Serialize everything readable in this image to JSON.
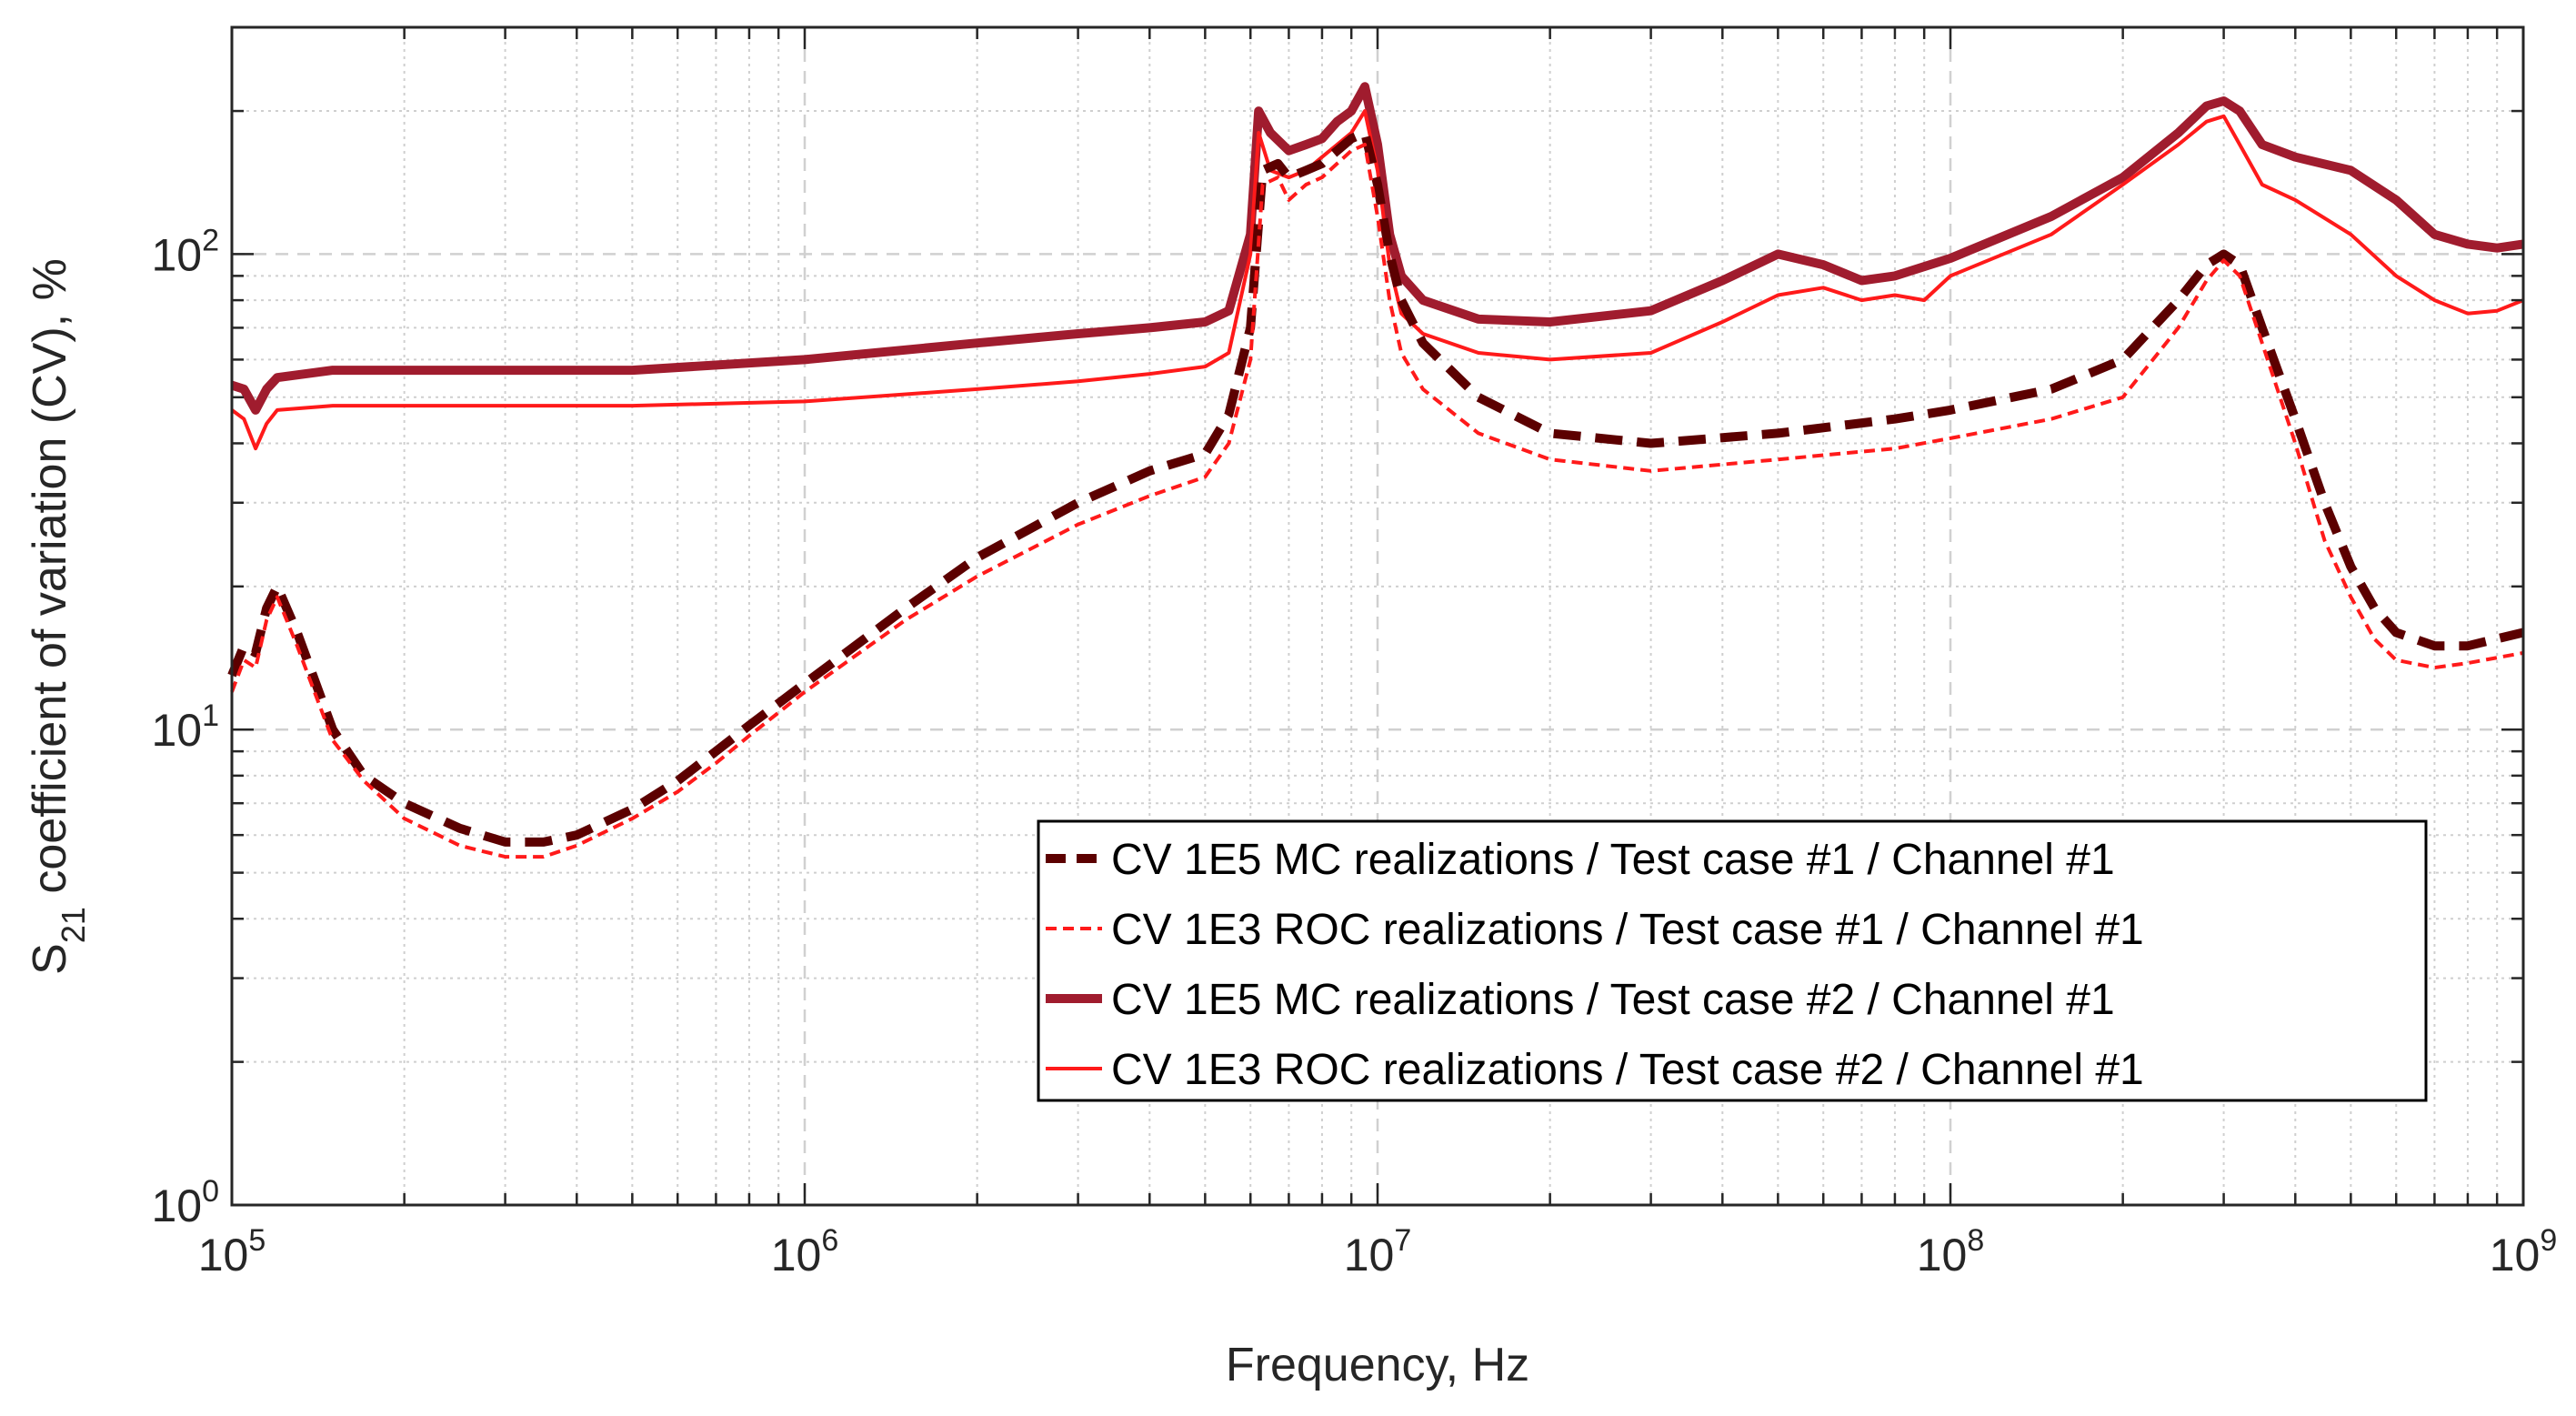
{
  "chart_data": {
    "type": "line",
    "xscale": "log",
    "yscale": "log",
    "xlim": [
      100000,
      1000000000
    ],
    "ylim": [
      1,
      300
    ],
    "xlabel": "Frequency, Hz",
    "ylabel": {
      "prefix": "S",
      "subscript": "21",
      "suffix": " coefficient of variation (CV), %"
    },
    "grid": true,
    "legend_location": "lower-right",
    "x_ticks": [
      {
        "value": 100000,
        "base": "10",
        "exp": "5"
      },
      {
        "value": 1000000,
        "base": "10",
        "exp": "6"
      },
      {
        "value": 10000000,
        "base": "10",
        "exp": "7"
      },
      {
        "value": 100000000,
        "base": "10",
        "exp": "8"
      },
      {
        "value": 1000000000,
        "base": "10",
        "exp": "9"
      }
    ],
    "y_ticks": [
      {
        "value": 1,
        "base": "10",
        "exp": "0"
      },
      {
        "value": 10,
        "base": "10",
        "exp": "1"
      },
      {
        "value": 100,
        "base": "10",
        "exp": "2"
      }
    ],
    "series": [
      {
        "name": "CV 1E5 MC realizations / Test case #1 / Channel #1",
        "color": "#5c0000",
        "style": "dashed-thick",
        "points": [
          [
            100000,
            13
          ],
          [
            105000,
            15
          ],
          [
            110000,
            14.5
          ],
          [
            115000,
            18
          ],
          [
            120000,
            20
          ],
          [
            130000,
            16
          ],
          [
            150000,
            10
          ],
          [
            170000,
            8
          ],
          [
            200000,
            7
          ],
          [
            250000,
            6.2
          ],
          [
            300000,
            5.8
          ],
          [
            350000,
            5.8
          ],
          [
            400000,
            6
          ],
          [
            500000,
            6.8
          ],
          [
            600000,
            7.8
          ],
          [
            700000,
            9
          ],
          [
            800000,
            10.2
          ],
          [
            1000000,
            12.5
          ],
          [
            1500000,
            18
          ],
          [
            2000000,
            23
          ],
          [
            3000000,
            30
          ],
          [
            4000000,
            35
          ],
          [
            5000000,
            38
          ],
          [
            5500000,
            46
          ],
          [
            6000000,
            70
          ],
          [
            6300000,
            150
          ],
          [
            6700000,
            155
          ],
          [
            7000000,
            145
          ],
          [
            7500000,
            150
          ],
          [
            8000000,
            155
          ],
          [
            8500000,
            165
          ],
          [
            9000000,
            175
          ],
          [
            9500000,
            180
          ],
          [
            10000000,
            140
          ],
          [
            10500000,
            100
          ],
          [
            11000000,
            80
          ],
          [
            12000000,
            65
          ],
          [
            15000000,
            50
          ],
          [
            20000000,
            42
          ],
          [
            30000000,
            40
          ],
          [
            50000000,
            42
          ],
          [
            80000000,
            45
          ],
          [
            100000000,
            47
          ],
          [
            150000000,
            52
          ],
          [
            200000000,
            60
          ],
          [
            250000000,
            80
          ],
          [
            280000000,
            95
          ],
          [
            300000000,
            100
          ],
          [
            320000000,
            95
          ],
          [
            350000000,
            70
          ],
          [
            400000000,
            45
          ],
          [
            450000000,
            30
          ],
          [
            500000000,
            22
          ],
          [
            550000000,
            18
          ],
          [
            600000000,
            16
          ],
          [
            700000000,
            15
          ],
          [
            800000000,
            15
          ],
          [
            1000000000,
            16
          ]
        ]
      },
      {
        "name": "CV 1E3 ROC realizations / Test case #1 / Channel #1",
        "color": "#ff1a1a",
        "style": "dashed-thin",
        "points": [
          [
            100000,
            12
          ],
          [
            105000,
            14
          ],
          [
            110000,
            13.5
          ],
          [
            115000,
            17
          ],
          [
            120000,
            19
          ],
          [
            130000,
            15
          ],
          [
            150000,
            9.5
          ],
          [
            170000,
            7.8
          ],
          [
            200000,
            6.5
          ],
          [
            250000,
            5.7
          ],
          [
            300000,
            5.4
          ],
          [
            350000,
            5.4
          ],
          [
            400000,
            5.7
          ],
          [
            500000,
            6.5
          ],
          [
            600000,
            7.4
          ],
          [
            700000,
            8.5
          ],
          [
            800000,
            9.7
          ],
          [
            1000000,
            12
          ],
          [
            1500000,
            17
          ],
          [
            2000000,
            21
          ],
          [
            3000000,
            27
          ],
          [
            4000000,
            31
          ],
          [
            5000000,
            34
          ],
          [
            5500000,
            40
          ],
          [
            6000000,
            60
          ],
          [
            6300000,
            140
          ],
          [
            6700000,
            145
          ],
          [
            7000000,
            130
          ],
          [
            7500000,
            140
          ],
          [
            8000000,
            145
          ],
          [
            8500000,
            155
          ],
          [
            9000000,
            165
          ],
          [
            9500000,
            170
          ],
          [
            10000000,
            120
          ],
          [
            10500000,
            80
          ],
          [
            11000000,
            62
          ],
          [
            12000000,
            52
          ],
          [
            15000000,
            42
          ],
          [
            20000000,
            37
          ],
          [
            30000000,
            35
          ],
          [
            50000000,
            37
          ],
          [
            80000000,
            39
          ],
          [
            100000000,
            41
          ],
          [
            150000000,
            45
          ],
          [
            200000000,
            50
          ],
          [
            250000000,
            70
          ],
          [
            280000000,
            88
          ],
          [
            300000000,
            97
          ],
          [
            320000000,
            90
          ],
          [
            350000000,
            65
          ],
          [
            400000000,
            40
          ],
          [
            450000000,
            25
          ],
          [
            500000000,
            19
          ],
          [
            550000000,
            15.5
          ],
          [
            600000000,
            14
          ],
          [
            700000000,
            13.5
          ],
          [
            800000000,
            13.8
          ],
          [
            1000000000,
            14.5
          ]
        ]
      },
      {
        "name": "CV 1E5 MC realizations / Test case #2 / Channel #1",
        "color": "#a01c2e",
        "style": "solid-thick",
        "points": [
          [
            100000,
            53
          ],
          [
            105000,
            52
          ],
          [
            110000,
            47
          ],
          [
            115000,
            52
          ],
          [
            120000,
            55
          ],
          [
            150000,
            57
          ],
          [
            200000,
            57
          ],
          [
            300000,
            57
          ],
          [
            500000,
            57
          ],
          [
            1000000,
            60
          ],
          [
            2000000,
            65
          ],
          [
            3000000,
            68
          ],
          [
            4000000,
            70
          ],
          [
            5000000,
            72
          ],
          [
            5500000,
            76
          ],
          [
            6000000,
            110
          ],
          [
            6200000,
            200
          ],
          [
            6500000,
            180
          ],
          [
            7000000,
            165
          ],
          [
            7500000,
            170
          ],
          [
            8000000,
            175
          ],
          [
            8500000,
            190
          ],
          [
            9000000,
            200
          ],
          [
            9500000,
            225
          ],
          [
            10000000,
            170
          ],
          [
            10500000,
            110
          ],
          [
            11000000,
            90
          ],
          [
            12000000,
            80
          ],
          [
            15000000,
            73
          ],
          [
            20000000,
            72
          ],
          [
            30000000,
            76
          ],
          [
            40000000,
            88
          ],
          [
            50000000,
            100
          ],
          [
            60000000,
            95
          ],
          [
            70000000,
            88
          ],
          [
            80000000,
            90
          ],
          [
            100000000,
            98
          ],
          [
            150000000,
            120
          ],
          [
            200000000,
            145
          ],
          [
            250000000,
            180
          ],
          [
            280000000,
            205
          ],
          [
            300000000,
            210
          ],
          [
            320000000,
            200
          ],
          [
            350000000,
            170
          ],
          [
            400000000,
            160
          ],
          [
            500000000,
            150
          ],
          [
            600000000,
            130
          ],
          [
            700000000,
            110
          ],
          [
            800000000,
            105
          ],
          [
            900000000,
            103
          ],
          [
            1000000000,
            105
          ]
        ]
      },
      {
        "name": "CV 1E3 ROC realizations / Test case #2 / Channel #1",
        "color": "#ff1a1a",
        "style": "solid-thin",
        "points": [
          [
            100000,
            47
          ],
          [
            105000,
            45
          ],
          [
            110000,
            39
          ],
          [
            115000,
            44
          ],
          [
            120000,
            47
          ],
          [
            150000,
            48
          ],
          [
            200000,
            48
          ],
          [
            300000,
            48
          ],
          [
            500000,
            48
          ],
          [
            1000000,
            49
          ],
          [
            2000000,
            52
          ],
          [
            3000000,
            54
          ],
          [
            4000000,
            56
          ],
          [
            5000000,
            58
          ],
          [
            5500000,
            62
          ],
          [
            6000000,
            100
          ],
          [
            6200000,
            180
          ],
          [
            6500000,
            150
          ],
          [
            7000000,
            145
          ],
          [
            7500000,
            150
          ],
          [
            8000000,
            160
          ],
          [
            8500000,
            170
          ],
          [
            9000000,
            180
          ],
          [
            9500000,
            200
          ],
          [
            10000000,
            150
          ],
          [
            10500000,
            95
          ],
          [
            11000000,
            75
          ],
          [
            12000000,
            68
          ],
          [
            15000000,
            62
          ],
          [
            20000000,
            60
          ],
          [
            30000000,
            62
          ],
          [
            40000000,
            72
          ],
          [
            50000000,
            82
          ],
          [
            60000000,
            85
          ],
          [
            70000000,
            80
          ],
          [
            80000000,
            82
          ],
          [
            90000000,
            80
          ],
          [
            100000000,
            90
          ],
          [
            150000000,
            110
          ],
          [
            200000000,
            140
          ],
          [
            250000000,
            170
          ],
          [
            280000000,
            190
          ],
          [
            300000000,
            195
          ],
          [
            320000000,
            170
          ],
          [
            350000000,
            140
          ],
          [
            400000000,
            130
          ],
          [
            500000000,
            110
          ],
          [
            600000000,
            90
          ],
          [
            700000000,
            80
          ],
          [
            800000000,
            75
          ],
          [
            900000000,
            76
          ],
          [
            1000000000,
            80
          ]
        ]
      }
    ]
  }
}
